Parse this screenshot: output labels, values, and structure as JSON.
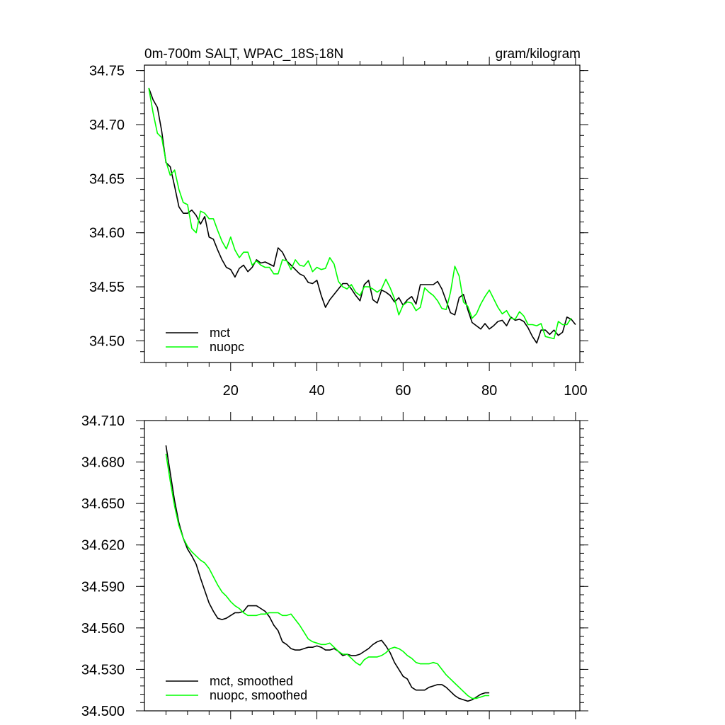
{
  "chart_data": [
    {
      "type": "line",
      "title_left": "0m-700m SALT, WPAC_18S-18N",
      "title_right": "gram/kilogram",
      "xlim": [
        0,
        101
      ],
      "ylim": [
        34.48,
        34.755
      ],
      "x_ticks": [
        20,
        40,
        60,
        80,
        100
      ],
      "x_tick_labels": [
        "20",
        "40",
        "60",
        "80",
        "100"
      ],
      "y_ticks": [
        34.5,
        34.55,
        34.6,
        34.65,
        34.7,
        34.75
      ],
      "y_tick_labels": [
        "34.50",
        "34.55",
        "34.60",
        "34.65",
        "34.70",
        "34.75"
      ],
      "legend_position": "bottom-left",
      "series": [
        {
          "name": "mct",
          "color": "#000000",
          "x_start": 1,
          "values": [
            34.734,
            34.723,
            34.716,
            34.694,
            34.665,
            34.661,
            34.643,
            34.624,
            34.618,
            34.618,
            34.621,
            34.616,
            34.608,
            34.615,
            34.596,
            34.594,
            34.584,
            34.575,
            34.568,
            34.566,
            34.559,
            34.567,
            34.57,
            34.564,
            34.568,
            34.575,
            34.572,
            34.573,
            34.571,
            34.569,
            34.586,
            34.582,
            34.574,
            34.57,
            34.566,
            34.562,
            34.56,
            34.554,
            34.553,
            34.556,
            34.542,
            34.531,
            34.538,
            34.543,
            34.548,
            34.553,
            34.553,
            34.548,
            34.542,
            34.537,
            34.552,
            34.556,
            34.538,
            34.535,
            34.547,
            34.545,
            34.542,
            34.536,
            34.54,
            34.533,
            34.538,
            34.541,
            34.534,
            34.552,
            34.552,
            34.552,
            34.552,
            34.555,
            34.548,
            34.537,
            34.526,
            34.524,
            34.54,
            34.543,
            34.529,
            34.517,
            34.514,
            34.511,
            34.516,
            34.511,
            34.514,
            34.518,
            34.519,
            34.514,
            34.522,
            34.519,
            34.52,
            34.518,
            34.512,
            34.504,
            34.498,
            34.51,
            34.51,
            34.506,
            34.51,
            34.505,
            34.508,
            34.522,
            34.52,
            34.515
          ]
        },
        {
          "name": "nuopc",
          "color": "#00ff00",
          "x_start": 1,
          "values": [
            34.734,
            34.711,
            34.692,
            34.688,
            34.666,
            34.653,
            34.658,
            34.64,
            34.628,
            34.626,
            34.604,
            34.6,
            34.62,
            34.618,
            34.613,
            34.613,
            34.602,
            34.592,
            34.585,
            34.596,
            34.584,
            34.577,
            34.582,
            34.582,
            34.57,
            34.574,
            34.57,
            34.568,
            34.568,
            34.562,
            34.562,
            34.575,
            34.574,
            34.566,
            34.575,
            34.57,
            34.569,
            34.574,
            34.564,
            34.568,
            34.566,
            34.567,
            34.577,
            34.571,
            34.555,
            34.55,
            34.548,
            34.552,
            34.545,
            34.542,
            34.55,
            34.55,
            34.548,
            34.545,
            34.548,
            34.557,
            34.549,
            34.539,
            34.524,
            34.533,
            34.536,
            34.535,
            34.528,
            34.531,
            34.549,
            34.545,
            34.542,
            34.537,
            34.53,
            34.529,
            34.545,
            34.569,
            34.56,
            34.536,
            34.532,
            34.521,
            34.525,
            34.534,
            34.541,
            34.547,
            34.539,
            34.531,
            34.525,
            34.528,
            34.521,
            34.52,
            34.527,
            34.523,
            34.515,
            34.515,
            34.514,
            34.516,
            34.504,
            34.503,
            34.502,
            34.518,
            34.515,
            34.515,
            34.521
          ]
        }
      ]
    },
    {
      "type": "line",
      "xlim": [
        0,
        101
      ],
      "ylim": [
        34.5,
        34.71
      ],
      "x_ticks": [
        20,
        40,
        60,
        80,
        100
      ],
      "y_ticks": [
        34.5,
        34.53,
        34.56,
        34.59,
        34.62,
        34.65,
        34.68,
        34.71
      ],
      "y_tick_labels": [
        "34.500",
        "34.530",
        "34.560",
        "34.590",
        "34.620",
        "34.650",
        "34.680",
        "34.710"
      ],
      "legend_position": "bottom-left",
      "series": [
        {
          "name": "mct, smoothed",
          "color": "#000000",
          "x_start": 5,
          "values": [
            34.692,
            34.672,
            34.652,
            34.636,
            34.625,
            34.617,
            34.612,
            34.606,
            34.596,
            34.587,
            34.578,
            34.572,
            34.567,
            34.566,
            34.567,
            34.569,
            34.571,
            34.571,
            34.572,
            34.576,
            34.576,
            34.576,
            34.574,
            34.572,
            34.568,
            34.562,
            34.558,
            34.55,
            34.548,
            34.545,
            34.544,
            34.544,
            34.545,
            34.546,
            34.546,
            34.547,
            34.546,
            34.544,
            34.544,
            34.545,
            34.543,
            34.54,
            34.541,
            34.54,
            34.54,
            34.541,
            34.543,
            34.545,
            34.548,
            34.55,
            34.551,
            34.547,
            34.542,
            34.535,
            34.53,
            34.525,
            34.523,
            34.517,
            34.515,
            34.515,
            34.515,
            34.517,
            34.518,
            34.519,
            34.519,
            34.517,
            34.514,
            34.511,
            34.509,
            34.508,
            34.507,
            34.508,
            34.51,
            34.512,
            34.513,
            34.513
          ]
        },
        {
          "name": "nuopc, smoothed",
          "color": "#00ff00",
          "x_start": 5,
          "values": [
            34.686,
            34.666,
            34.648,
            34.634,
            34.625,
            34.619,
            34.615,
            34.612,
            34.609,
            34.607,
            34.603,
            34.597,
            34.591,
            34.586,
            34.583,
            34.579,
            34.576,
            34.574,
            34.571,
            34.569,
            34.569,
            34.569,
            34.57,
            34.57,
            34.571,
            34.571,
            34.571,
            34.569,
            34.569,
            34.57,
            34.566,
            34.562,
            34.557,
            34.552,
            34.55,
            34.549,
            34.548,
            34.548,
            34.549,
            34.546,
            34.543,
            34.541,
            34.541,
            34.538,
            34.535,
            34.533,
            34.537,
            34.539,
            34.539,
            34.539,
            34.54,
            34.542,
            34.545,
            34.546,
            34.545,
            34.543,
            34.54,
            34.538,
            34.535,
            34.534,
            34.534,
            34.534,
            34.535,
            34.534,
            34.53,
            34.526,
            34.523,
            34.52,
            34.517,
            34.514,
            34.511,
            34.509,
            34.509,
            34.51,
            34.511,
            34.511
          ]
        }
      ]
    }
  ]
}
